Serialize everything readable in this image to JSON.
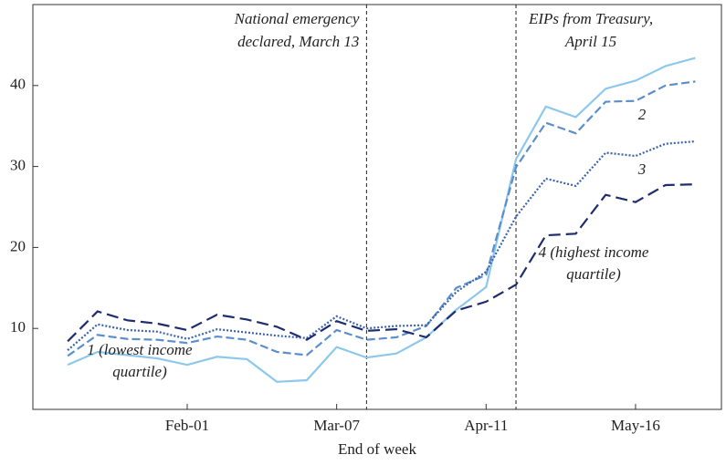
{
  "chart_data": {
    "type": "line",
    "x_label": "End of week",
    "categories": [
      null,
      null,
      null,
      null,
      "Feb-01",
      null,
      null,
      null,
      null,
      "Mar-07",
      null,
      null,
      null,
      null,
      "Apr-11",
      null,
      null,
      null,
      null,
      "May-16",
      null,
      null
    ],
    "ylim": [
      0,
      50
    ],
    "yticks": [
      10,
      20,
      30,
      40
    ],
    "series": [
      {
        "label": [
          "1 (lowest income",
          "quartile)"
        ],
        "color": "#8dc8ec",
        "style": "solid",
        "values": [
          5.5,
          7.1,
          6.7,
          6.3,
          5.5,
          6.5,
          6.2,
          3.4,
          3.6,
          7.7,
          6.4,
          6.9,
          8.9,
          12.3,
          15.1,
          30.9,
          37.4,
          36.1,
          39.6,
          40.6,
          42.4,
          43.4
        ]
      },
      {
        "label": [
          "2"
        ],
        "color": "#5b8fcc",
        "style": "dashed",
        "values": [
          6.6,
          9.2,
          8.7,
          8.6,
          8.2,
          9.0,
          8.6,
          7.1,
          6.7,
          9.8,
          8.6,
          8.9,
          10.3,
          15.0,
          16.6,
          29.9,
          35.4,
          34.1,
          38.0,
          38.1,
          40.0,
          40.5
        ]
      },
      {
        "label": [
          "3"
        ],
        "color": "#3a62ad",
        "style": "dotted",
        "values": [
          7.3,
          10.5,
          9.8,
          9.6,
          8.7,
          9.9,
          9.5,
          9.1,
          8.8,
          11.5,
          10.0,
          10.3,
          10.4,
          14.5,
          17.0,
          23.8,
          28.5,
          27.6,
          31.7,
          31.3,
          32.8,
          33.1
        ]
      },
      {
        "label": [
          "4 (highest income",
          "quartile)"
        ],
        "color": "#1f2d6e",
        "style": "longdash",
        "values": [
          8.4,
          12.1,
          11.0,
          10.6,
          9.8,
          11.7,
          11.1,
          10.2,
          8.6,
          10.9,
          9.7,
          9.9,
          8.9,
          12.2,
          13.3,
          15.4,
          21.5,
          21.7,
          26.5,
          25.6,
          27.7,
          27.8
        ]
      }
    ],
    "annotations": [
      {
        "at": 10,
        "text": [
          "National emergency",
          "declared, March 13"
        ]
      },
      {
        "at": 15,
        "text": [
          "EIPs from Treasury,",
          "April 15"
        ]
      }
    ]
  }
}
